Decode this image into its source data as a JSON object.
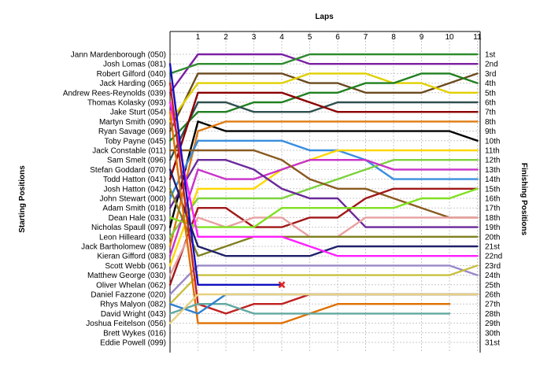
{
  "chart_data": {
    "type": "line",
    "title": "Laps",
    "ylabel_left": "Starting Positions",
    "ylabel_right": "Finishing Positions",
    "x": [
      0,
      1,
      2,
      3,
      4,
      5,
      6,
      7,
      8,
      9,
      10,
      11
    ],
    "xticks": [
      "1",
      "2",
      "3",
      "4",
      "5",
      "6",
      "7",
      "8",
      "9",
      "10",
      "11"
    ],
    "starting_labels": [
      "Jann Mardenborough (050)",
      "Josh Lomas (081)",
      "Robert Gilford (040)",
      "Jack Harding (065)",
      "Andrew Rees-Reynolds (039)",
      "Thomas Kolasky (093)",
      "Jake Sturt (054)",
      "Martyn Smith (090)",
      "Ryan Savage (069)",
      "Toby Payne (045)",
      "Jack Constable (011)",
      "Sam Smelt (096)",
      "Stefan Goddard (070)",
      "Todd Hatton (041)",
      "Josh Hatton (042)",
      "John Stewart (000)",
      "Adam Smith (018)",
      "Dean Hale (031)",
      "Nicholas Spaull (097)",
      "Leon Hilleard (033)",
      "Jack Bartholomew (089)",
      "Kieran Gifford (083)",
      "Scott Webb (061)",
      "Matthew George (030)",
      "Oliver Whelan (062)",
      "Daniel Fazzone (020)",
      "Rhys Malyon (082)",
      "David Wright (043)",
      "Joshua Feitelson (056)",
      "Brett Wykes (016)",
      "Eddie Powell (099)"
    ],
    "finishing_labels": [
      "1st",
      "2nd",
      "3rd",
      "4th",
      "5th",
      "6th",
      "7th",
      "8th",
      "9th",
      "10th",
      "11th",
      "12th",
      "13th",
      "14th",
      "15th",
      "16th",
      "17th",
      "18th",
      "19th",
      "20th",
      "21st",
      "22nd",
      "23rd",
      "24th",
      "25th",
      "26th",
      "27th",
      "28th",
      "29th",
      "30th",
      "31st"
    ],
    "ylim": [
      1,
      31
    ],
    "series": [
      {
        "color": "#7b1fa2",
        "values": [
          5,
          1,
          1,
          1,
          1,
          2,
          2,
          2,
          2,
          2,
          2,
          2
        ]
      },
      {
        "color": "#2e8b2e",
        "values": [
          3,
          2,
          2,
          2,
          2,
          1,
          1,
          1,
          1,
          1,
          1,
          1
        ]
      },
      {
        "color": "#2e8b57",
        "values": [
          1,
          null,
          null,
          null,
          null,
          null,
          null,
          null,
          null,
          null,
          null,
          null
        ]
      },
      {
        "color": "#6b4a1e",
        "values": [
          9,
          3,
          3,
          3,
          3,
          4,
          4,
          5,
          5,
          5,
          4,
          3
        ]
      },
      {
        "color": "#e0d000",
        "values": [
          8,
          4,
          4,
          4,
          4,
          3,
          3,
          3,
          4,
          4,
          5,
          5
        ]
      },
      {
        "color": "#208020",
        "values": [
          10,
          7,
          7,
          6,
          6,
          5,
          5,
          4,
          4,
          3,
          3,
          4
        ]
      },
      {
        "color": "#2f4f4f",
        "values": [
          12,
          6,
          6,
          7,
          7,
          7,
          6,
          6,
          6,
          6,
          6,
          6
        ]
      },
      {
        "color": "#8b0000",
        "values": [
          14,
          5,
          5,
          5,
          5,
          6,
          7,
          7,
          7,
          7,
          7,
          7
        ]
      },
      {
        "color": "#000000",
        "values": [
          19,
          8,
          9,
          9,
          9,
          9,
          9,
          9,
          9,
          9,
          9,
          10
        ]
      },
      {
        "color": "#e07a10",
        "values": [
          21,
          9,
          8,
          8,
          8,
          8,
          8,
          8,
          8,
          8,
          8,
          8
        ]
      },
      {
        "color": "#3a8ee0",
        "values": [
          16,
          10,
          10,
          10,
          10,
          11,
          11,
          12,
          14,
          14,
          14,
          14
        ]
      },
      {
        "color": "#ffd700",
        "values": [
          23,
          15,
          15,
          15,
          13,
          12,
          11,
          11,
          11,
          11,
          11,
          11
        ]
      },
      {
        "color": "#7cd23c",
        "values": [
          20,
          16,
          16,
          16,
          16,
          15,
          14,
          13,
          12,
          12,
          12,
          12
        ]
      },
      {
        "color": "#c832c8",
        "values": [
          22,
          13,
          14,
          14,
          13,
          12,
          12,
          12,
          13,
          13,
          13,
          13
        ]
      },
      {
        "color": "#6a2a9a",
        "values": [
          17,
          12,
          12,
          13,
          15,
          16,
          16,
          19,
          19,
          19,
          19,
          19
        ]
      },
      {
        "color": "#8a5a20",
        "values": [
          11,
          11,
          11,
          11,
          12,
          14,
          15,
          15,
          16,
          17,
          18,
          18
        ]
      },
      {
        "color": "#a01818",
        "values": [
          25,
          17,
          17,
          19,
          19,
          18,
          18,
          16,
          15,
          15,
          15,
          15
        ]
      },
      {
        "color": "#e8a0a0",
        "values": [
          24,
          18,
          19,
          18,
          18,
          20,
          20,
          18,
          18,
          18,
          18,
          18
        ]
      },
      {
        "color": "#80e020",
        "values": [
          18,
          19,
          19,
          19,
          17,
          17,
          17,
          17,
          17,
          16,
          16,
          15
        ]
      },
      {
        "color": "#808020",
        "values": [
          15,
          22,
          21,
          20,
          20,
          20,
          20,
          20,
          20,
          20,
          20,
          20
        ]
      },
      {
        "color": "#20206a",
        "values": [
          13,
          21,
          22,
          22,
          22,
          22,
          21,
          21,
          21,
          21,
          21,
          21
        ]
      },
      {
        "color": "#ff20ff",
        "values": [
          6,
          20,
          20,
          20,
          20,
          21,
          22,
          22,
          22,
          22,
          22,
          22
        ]
      },
      {
        "color": "#9a88c8",
        "values": [
          26,
          23,
          23,
          23,
          23,
          23,
          23,
          23,
          23,
          23,
          23,
          24
        ]
      },
      {
        "color": "#c8c040",
        "values": [
          27,
          24,
          24,
          24,
          24,
          24,
          24,
          24,
          24,
          24,
          24,
          23
        ]
      },
      {
        "color": "#1010c0",
        "values": [
          2,
          25,
          25,
          25,
          25,
          null,
          null,
          null,
          null,
          null,
          null,
          null
        ]
      },
      {
        "color": "#c02020",
        "values": [
          4,
          27,
          28,
          27,
          27,
          26,
          26,
          26,
          26,
          26,
          26,
          26
        ]
      },
      {
        "color": "#e07000",
        "values": [
          7,
          29,
          29,
          29,
          29,
          28,
          27,
          27,
          27,
          27,
          27,
          null
        ]
      },
      {
        "color": "#60a8a0",
        "values": [
          28,
          27,
          27,
          28,
          28,
          28,
          28,
          28,
          28,
          28,
          28,
          null
        ]
      },
      {
        "color": "#3080d0",
        "values": [
          27,
          28,
          26,
          26,
          26,
          26,
          26,
          26,
          26,
          26,
          26,
          26
        ]
      },
      {
        "color": "#e8d080",
        "values": [
          29,
          26,
          26,
          26,
          26,
          26,
          26,
          26,
          26,
          26,
          26,
          26
        ]
      }
    ],
    "annotations": [
      {
        "type": "retired-marker",
        "x": 4,
        "y": 25,
        "color": "#e02020"
      }
    ]
  }
}
